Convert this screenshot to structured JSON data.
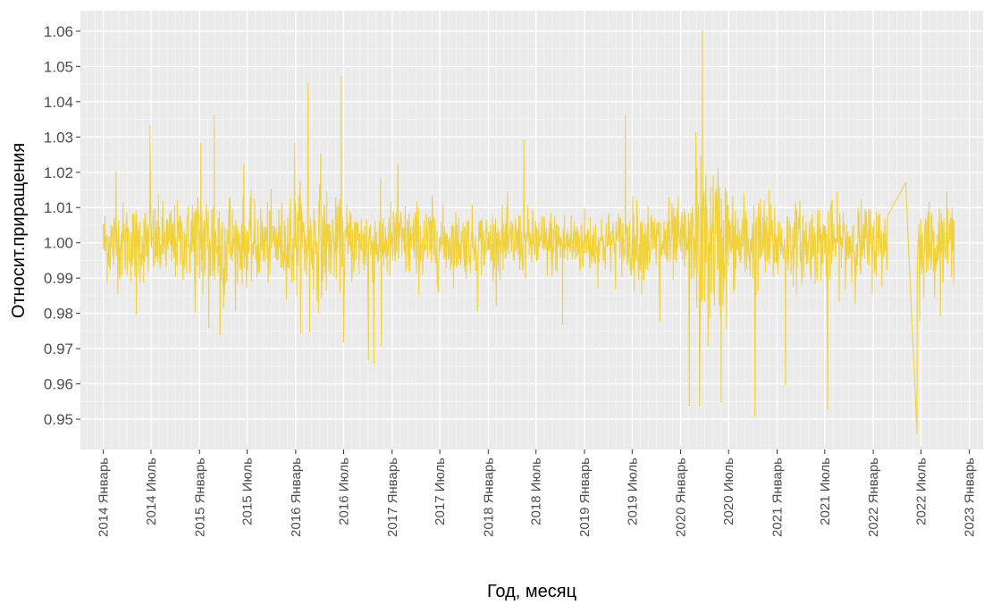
{
  "chart_data": {
    "type": "line",
    "title": "",
    "xlabel": "Год, месяц",
    "ylabel": "Относит.приращения",
    "xlim": [
      "2013-10-06",
      "2023-02-22"
    ],
    "ylim": [
      0.9414,
      1.0658
    ],
    "y_ticks": [
      0.95,
      0.96,
      0.97,
      0.98,
      0.99,
      1.0,
      1.01,
      1.02,
      1.03,
      1.04,
      1.05,
      1.06
    ],
    "y_tick_labels": [
      "0.95",
      "0.96",
      "0.97",
      "0.98",
      "0.99",
      "1.00",
      "1.01",
      "1.02",
      "1.03",
      "1.04",
      "1.05",
      "1.06"
    ],
    "x_ticks": [
      "2014-01-01",
      "2014-07-01",
      "2015-01-01",
      "2015-07-01",
      "2016-01-01",
      "2016-07-01",
      "2017-01-01",
      "2017-07-01",
      "2018-01-01",
      "2018-07-01",
      "2019-01-01",
      "2019-07-01",
      "2020-01-01",
      "2020-07-01",
      "2021-01-01",
      "2021-07-01",
      "2022-01-01",
      "2022-07-01",
      "2023-01-01"
    ],
    "x_tick_labels": [
      "2014 Январь",
      "2014 Июль",
      "2015 Январь",
      "2015 Июль",
      "2016 Январь",
      "2016 Июль",
      "2017 Январь",
      "2017 Июль",
      "2018 Январь",
      "2018 Июль",
      "2019 Январь",
      "2019 Июль",
      "2020 Январь",
      "2020 Июль",
      "2021 Январь",
      "2021 Июль",
      "2022 Январь",
      "2022 Июль",
      "2023 Январь"
    ],
    "grid": true,
    "legend": "none",
    "series": [
      {
        "color": "#F2D23A",
        "noise_baseline": 1.0,
        "x": [
          "2014-01-01",
          "2014-02-18",
          "2014-05-06",
          "2014-06-27",
          "2015-01-06",
          "2015-02-05",
          "2015-02-26",
          "2015-03-20",
          "2015-06-18",
          "2015-12-28",
          "2016-02-17",
          "2016-02-23",
          "2016-04-05",
          "2016-06-22",
          "2016-07-01",
          "2016-10-03",
          "2016-10-24",
          "2016-11-21",
          "2017-01-23",
          "2017-11-21",
          "2018-05-16",
          "2018-10-10",
          "2019-06-05",
          "2019-10-14",
          "2020-02-03",
          "2020-02-28",
          "2020-03-13",
          "2020-03-24",
          "2020-04-14",
          "2020-06-03",
          "2020-10-09",
          "2021-02-02",
          "2021-07-12",
          "2022-05-04",
          "2022-06-16",
          "2022-06-23",
          "2022-06-27",
          "2022-11-04"
        ],
        "y": [
          1.005,
          1.02,
          0.98,
          1.033,
          1.028,
          0.976,
          1.036,
          0.974,
          1.022,
          1.028,
          1.045,
          0.975,
          1.025,
          1.047,
          0.972,
          0.967,
          0.966,
          0.971,
          1.022,
          0.981,
          1.029,
          0.977,
          1.036,
          0.978,
          0.954,
          1.031,
          0.954,
          1.06,
          0.971,
          0.955,
          0.951,
          0.96,
          0.953,
          1.017,
          0.946,
          1.005,
          0.978,
          1.006
        ]
      }
    ]
  }
}
